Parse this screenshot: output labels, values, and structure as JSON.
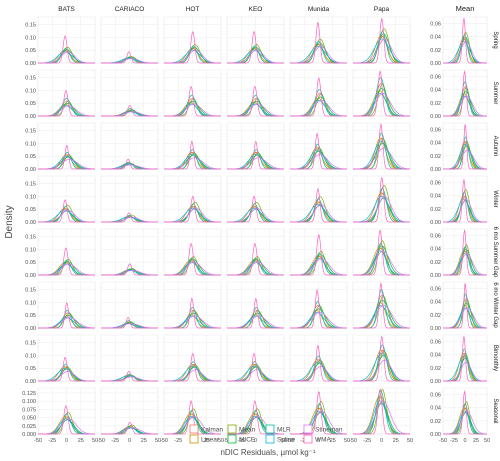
{
  "chart_data": {
    "type": "line",
    "chart_kind": "faceted density curves",
    "xlabel": "nDIC Residuals, µmol kg⁻¹",
    "ylabel": "Density",
    "x_ticks": [
      -50,
      -25,
      0,
      25,
      50
    ],
    "xlim": [
      -50,
      50
    ],
    "facet_columns": [
      "BATS",
      "CARIACO",
      "HOT",
      "KEO",
      "Munida",
      "Papa",
      "Mean"
    ],
    "facet_rows": [
      "Spring",
      "Summer",
      "Autumn",
      "Winter",
      "6 mo Summer Gap",
      "6 mo Winter Gap",
      "Bimonthly",
      "Seasonal"
    ],
    "y_ticks_left": {
      "Spring": [
        "0.00",
        "0.05",
        "0.10",
        "0.15"
      ],
      "Summer": [
        "0.00",
        "0.05",
        "0.10",
        "0.15"
      ],
      "Autumn": [
        "0.00",
        "0.05",
        "0.10",
        "0.15"
      ],
      "Winter": [
        "0.00",
        "0.05",
        "0.10",
        "0.15"
      ],
      "6 mo Summer Gap": [
        "0.00",
        "0.05",
        "0.10",
        "0.15"
      ],
      "6 mo Winter Gap": [
        "0.00",
        "0.05",
        "0.10",
        "0.15"
      ],
      "Bimonthly": [
        "0.00",
        "0.05",
        "0.10",
        "0.15"
      ],
      "Seasonal": [
        "0.000",
        "0.025",
        "0.050",
        "0.075",
        "0.100",
        "0.125"
      ]
    },
    "y_ticks_left_values": {
      "default": [
        0,
        0.05,
        0.1,
        0.15
      ],
      "Seasonal": [
        0,
        0.025,
        0.05,
        0.075,
        0.1,
        0.125
      ]
    },
    "ylim_left": {
      "default": [
        0,
        0.18
      ],
      "Seasonal": [
        0,
        0.14
      ]
    },
    "y_ticks_right": [
      "0.00",
      "0.02",
      "0.04",
      "0.06"
    ],
    "y_ticks_right_values": [
      0,
      0.02,
      0.04,
      0.06
    ],
    "ylim_right": [
      0,
      0.07
    ],
    "legend_placement": "bottom",
    "series": [
      {
        "name": "Kalman",
        "color": "#F8766D",
        "sigma": 9,
        "scale": 0.9,
        "shift": 1
      },
      {
        "name": "Linear",
        "color": "#D39200",
        "sigma": 10,
        "scale": 0.85,
        "shift": -2
      },
      {
        "name": "Mean",
        "color": "#7CAE00",
        "sigma": 8,
        "scale": 1.0,
        "shift": 3
      },
      {
        "name": "MICE",
        "color": "#00BA38",
        "sigma": 11,
        "scale": 0.8,
        "shift": 2
      },
      {
        "name": "MLR",
        "color": "#00C19F",
        "sigma": 7,
        "scale": 1.05,
        "shift": 0
      },
      {
        "name": "Spline",
        "color": "#00B9E3",
        "sigma": 12,
        "scale": 0.75,
        "shift": -1
      },
      {
        "name": "Stineman",
        "color": "#DB72FB",
        "sigma": 13,
        "scale": 0.7,
        "shift": 4
      },
      {
        "name": "WMA",
        "color": "#FF61C3",
        "sigma": 3.5,
        "scale": 1.6,
        "shift": -1
      }
    ],
    "panel_peaks": {
      "BATS": 0.06,
      "CARIACO": 0.025,
      "HOT": 0.07,
      "KEO": 0.07,
      "Munida": 0.09,
      "Papa": 0.13,
      "Mean": 0.045
    }
  },
  "legend": {
    "items": [
      "Kalman",
      "Linear",
      "Mean",
      "MICE",
      "MLR",
      "Spline",
      "Stineman",
      "WMA"
    ]
  }
}
